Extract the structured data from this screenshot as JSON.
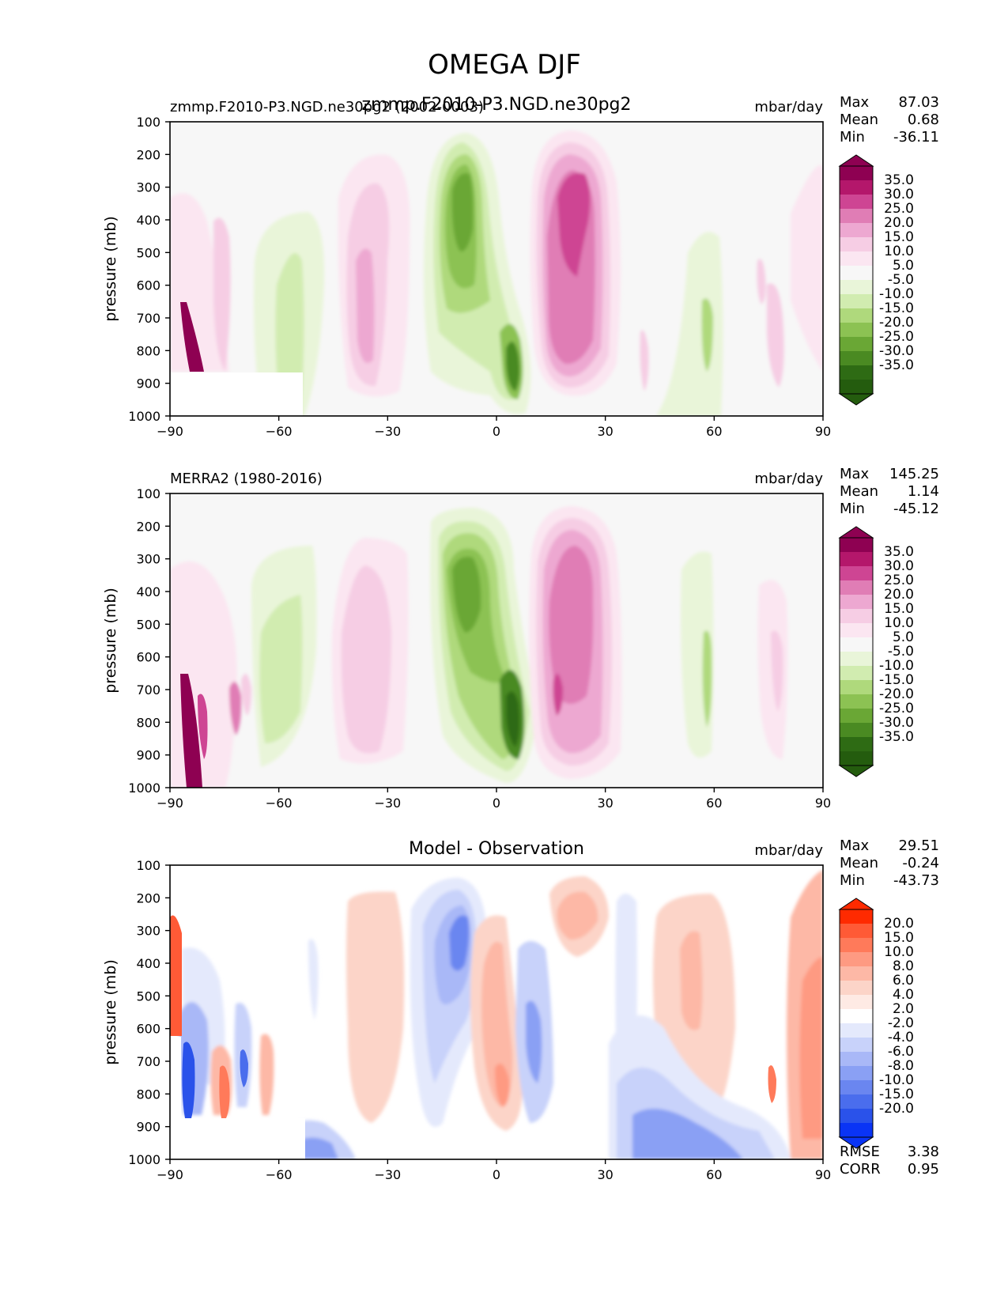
{
  "figure_title": "OMEGA DJF",
  "chart_data": [
    {
      "type": "contour",
      "left_title": "zmmp.F2010-P3.NGD.ne30pg2 (2002-0003)",
      "center_title": "zmmp.F2010-P3.NGD.ne30pg2",
      "units": "mbar/day",
      "ylabel": "pressure (mb)",
      "xlim": [
        -90,
        90
      ],
      "ylim": [
        1000,
        100
      ],
      "x_ticks": [
        "−90",
        "−60",
        "−30",
        "0",
        "30",
        "60",
        "90"
      ],
      "y_ticks": [
        "100",
        "200",
        "300",
        "400",
        "500",
        "600",
        "700",
        "800",
        "900",
        "1000"
      ],
      "stats": [
        {
          "label": "Max",
          "value": "87.03"
        },
        {
          "label": "Mean",
          "value": "0.68"
        },
        {
          "label": "Min",
          "value": "-36.11"
        }
      ],
      "colorbar_labels": [
        "35.0",
        "30.0",
        "25.0",
        "20.0",
        "15.0",
        "10.0",
        "5.0",
        "-5.0",
        "-10.0",
        "-15.0",
        "-20.0",
        "-25.0",
        "-30.0",
        "-35.0"
      ],
      "colorbar_colors": [
        "#8e0152",
        "#b4176b",
        "#ce4593",
        "#e07db5",
        "#eda8d1",
        "#f6cde4",
        "#fbe6f1",
        "#f7f7f7",
        "#e9f5d9",
        "#d1ecb0",
        "#afd97c",
        "#8cc253",
        "#6aa735",
        "#4a8a22",
        "#2e6b14",
        "#245c0e"
      ]
    },
    {
      "type": "contour",
      "left_title": "MERRA2 (1980-2016)",
      "center_title": "",
      "units": "mbar/day",
      "ylabel": "pressure (mb)",
      "xlim": [
        -90,
        90
      ],
      "ylim": [
        1000,
        100
      ],
      "x_ticks": [
        "−90",
        "−60",
        "−30",
        "0",
        "30",
        "60",
        "90"
      ],
      "y_ticks": [
        "100",
        "200",
        "300",
        "400",
        "500",
        "600",
        "700",
        "800",
        "900",
        "1000"
      ],
      "stats": [
        {
          "label": "Max",
          "value": "145.25"
        },
        {
          "label": "Mean",
          "value": "1.14"
        },
        {
          "label": "Min",
          "value": "-45.12"
        }
      ],
      "colorbar_labels": [
        "35.0",
        "30.0",
        "25.0",
        "20.0",
        "15.0",
        "10.0",
        "5.0",
        "-5.0",
        "-10.0",
        "-15.0",
        "-20.0",
        "-25.0",
        "-30.0",
        "-35.0"
      ],
      "colorbar_colors": [
        "#8e0152",
        "#b4176b",
        "#ce4593",
        "#e07db5",
        "#eda8d1",
        "#f6cde4",
        "#fbe6f1",
        "#f7f7f7",
        "#e9f5d9",
        "#d1ecb0",
        "#afd97c",
        "#8cc253",
        "#6aa735",
        "#4a8a22",
        "#2e6b14",
        "#245c0e"
      ]
    },
    {
      "type": "contour",
      "left_title": "",
      "center_title": "Model - Observation",
      "units": "mbar/day",
      "ylabel": "pressure (mb)",
      "xlim": [
        -90,
        90
      ],
      "ylim": [
        1000,
        100
      ],
      "x_ticks": [
        "−90",
        "−60",
        "−30",
        "0",
        "30",
        "60",
        "90"
      ],
      "y_ticks": [
        "100",
        "200",
        "300",
        "400",
        "500",
        "600",
        "700",
        "800",
        "900",
        "1000"
      ],
      "stats": [
        {
          "label": "Max",
          "value": "29.51"
        },
        {
          "label": "Mean",
          "value": "-0.24"
        },
        {
          "label": "Min",
          "value": "-43.73"
        }
      ],
      "extra_stats": [
        {
          "label": "RMSE",
          "value": "3.38"
        },
        {
          "label": "CORR",
          "value": "0.95"
        }
      ],
      "colorbar_labels": [
        "20.0",
        "15.0",
        "10.0",
        "8.0",
        "6.0",
        "4.0",
        "2.0",
        "-2.0",
        "-4.0",
        "-6.0",
        "-8.0",
        "-10.0",
        "-15.0",
        "-20.0"
      ],
      "colorbar_colors": [
        "#ff2a00",
        "#ff5a36",
        "#ff7a5a",
        "#fe9a82",
        "#fdb8a6",
        "#fcd4c8",
        "#feeae4",
        "#ffffff",
        "#e4e9fc",
        "#c8d2fa",
        "#a9b8f7",
        "#8aa0f4",
        "#6a86f0",
        "#4a6ded",
        "#2a52ea",
        "#0a34f5"
      ]
    }
  ]
}
